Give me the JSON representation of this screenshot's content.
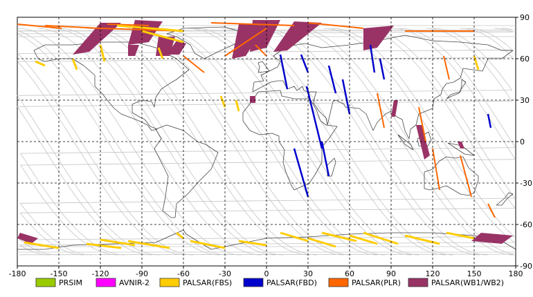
{
  "map": {
    "lon_range": [
      -180,
      180
    ],
    "lat_range": [
      -90,
      90
    ],
    "grid_style": "dashed",
    "x_ticks": [
      "-180",
      "-150",
      "-120",
      "-90",
      "-60",
      "-30",
      "0",
      "30",
      "60",
      "90",
      "120",
      "150",
      "180"
    ],
    "y_ticks": [
      "90",
      "60",
      "30",
      "0",
      "-30",
      "-60",
      "-90"
    ]
  },
  "legend": [
    {
      "label": "PRSIM",
      "color": "#99cc00"
    },
    {
      "label": "AVNIR-2",
      "color": "#ff00ff"
    },
    {
      "label": "PALSAR(FBS)",
      "color": "#ffcc00"
    },
    {
      "label": "PALSAR(FBD)",
      "color": "#0000cc"
    },
    {
      "label": "PALSAR(PLR)",
      "color": "#ff6600"
    },
    {
      "label": "PALSAR(WB1/WB2)",
      "color": "#993366"
    }
  ],
  "swaths": {
    "wb": [
      [
        [
          -120,
          86
        ],
        [
          -105,
          86
        ],
        [
          -128,
          65
        ],
        [
          -140,
          63
        ]
      ],
      [
        [
          -95,
          88
        ],
        [
          -75,
          87
        ],
        [
          -85,
          72
        ],
        [
          -100,
          70
        ]
      ],
      [
        [
          -78,
          76
        ],
        [
          -66,
          76
        ],
        [
          -70,
          62
        ],
        [
          -80,
          62
        ]
      ],
      [
        [
          -65,
          73
        ],
        [
          -58,
          71
        ],
        [
          -63,
          63
        ],
        [
          -72,
          63
        ]
      ],
      [
        [
          -20,
          85
        ],
        [
          0,
          86
        ],
        [
          -15,
          62
        ],
        [
          -25,
          60
        ]
      ],
      [
        [
          -10,
          88
        ],
        [
          10,
          88
        ],
        [
          0,
          68
        ],
        [
          -12,
          65
        ]
      ],
      [
        [
          20,
          87
        ],
        [
          40,
          86
        ],
        [
          15,
          66
        ],
        [
          5,
          65
        ]
      ],
      [
        [
          70,
          82
        ],
        [
          92,
          84
        ],
        [
          80,
          68
        ],
        [
          70,
          66
        ]
      ],
      [
        [
          -100,
          70
        ],
        [
          -92,
          70
        ],
        [
          -95,
          62
        ],
        [
          -100,
          62
        ]
      ],
      [
        [
          92,
          30
        ],
        [
          95,
          30
        ],
        [
          93,
          18
        ],
        [
          90,
          18
        ]
      ],
      [
        [
          108,
          12
        ],
        [
          112,
          12
        ],
        [
          118,
          -10
        ],
        [
          114,
          -13
        ]
      ],
      [
        [
          -12,
          33
        ],
        [
          -8,
          33
        ],
        [
          -8,
          28
        ],
        [
          -12,
          28
        ]
      ],
      [
        [
          138,
          0
        ],
        [
          141,
          0
        ],
        [
          143,
          -5
        ],
        [
          140,
          -5
        ]
      ],
      [
        [
          -178,
          -66
        ],
        [
          -165,
          -70
        ],
        [
          -170,
          -74
        ],
        [
          -180,
          -70
        ]
      ],
      [
        [
          155,
          -66
        ],
        [
          178,
          -68
        ],
        [
          170,
          -74
        ],
        [
          148,
          -72
        ]
      ]
    ],
    "fbs": [
      [
        [
          -108,
          84
        ],
        [
          -60,
          80
        ]
      ],
      [
        [
          -90,
          80
        ],
        [
          -60,
          72
        ]
      ],
      [
        [
          -120,
          70
        ],
        [
          -117,
          58
        ]
      ],
      [
        [
          -78,
          68
        ],
        [
          -75,
          60
        ]
      ],
      [
        [
          -22,
          30
        ],
        [
          -20,
          22
        ]
      ],
      [
        [
          -167,
          58
        ],
        [
          -160,
          55
        ]
      ],
      [
        [
          -140,
          60
        ],
        [
          -137,
          52
        ]
      ],
      [
        [
          150,
          62
        ],
        [
          153,
          52
        ]
      ],
      [
        [
          -175,
          -73
        ],
        [
          -150,
          -77
        ]
      ],
      [
        [
          -130,
          -74
        ],
        [
          -105,
          -77
        ]
      ],
      [
        [
          -100,
          -72
        ],
        [
          -70,
          -77
        ]
      ],
      [
        [
          -65,
          -66
        ],
        [
          -60,
          -70
        ]
      ],
      [
        [
          -55,
          -72
        ],
        [
          -30,
          -77
        ]
      ],
      [
        [
          -20,
          -72
        ],
        [
          0,
          -75
        ]
      ],
      [
        [
          10,
          -66
        ],
        [
          30,
          -72
        ]
      ],
      [
        [
          30,
          -70
        ],
        [
          50,
          -76
        ]
      ],
      [
        [
          40,
          -66
        ],
        [
          65,
          -72
        ]
      ],
      [
        [
          70,
          -66
        ],
        [
          95,
          -74
        ]
      ],
      [
        [
          100,
          -68
        ],
        [
          125,
          -74
        ]
      ],
      [
        [
          130,
          -66
        ],
        [
          150,
          -70
        ]
      ],
      [
        [
          -120,
          -71
        ],
        [
          -95,
          -75
        ]
      ],
      [
        [
          60,
          -68
        ],
        [
          80,
          -74
        ]
      ],
      [
        [
          -33,
          33
        ],
        [
          -30,
          25
        ]
      ]
    ],
    "fbd": [
      [
        [
          10,
          63
        ],
        [
          15,
          38
        ]
      ],
      [
        [
          25,
          63
        ],
        [
          30,
          50
        ]
      ],
      [
        [
          45,
          55
        ],
        [
          50,
          35
        ]
      ],
      [
        [
          55,
          45
        ],
        [
          60,
          20
        ]
      ],
      [
        [
          75,
          70
        ],
        [
          78,
          50
        ]
      ],
      [
        [
          82,
          60
        ],
        [
          85,
          45
        ]
      ],
      [
        [
          29,
          40
        ],
        [
          40,
          -5
        ]
      ],
      [
        [
          20,
          -5
        ],
        [
          30,
          -40
        ]
      ],
      [
        [
          40,
          0
        ],
        [
          45,
          -25
        ]
      ],
      [
        [
          160,
          20
        ],
        [
          162,
          10
        ]
      ]
    ],
    "plr": [
      [
        [
          -180,
          85
        ],
        [
          -148,
          82
        ]
      ],
      [
        [
          -160,
          84
        ],
        [
          -120,
          82
        ]
      ],
      [
        [
          -115,
          85
        ],
        [
          -85,
          84
        ]
      ],
      [
        [
          -40,
          86
        ],
        [
          20,
          84
        ]
      ],
      [
        [
          30,
          86
        ],
        [
          70,
          82
        ]
      ],
      [
        [
          100,
          80
        ],
        [
          150,
          80
        ]
      ],
      [
        [
          -60,
          62
        ],
        [
          -45,
          50
        ]
      ],
      [
        [
          -8,
          70
        ],
        [
          0,
          62
        ]
      ],
      [
        [
          0,
          82
        ],
        [
          -30,
          62
        ]
      ],
      [
        [
          128,
          62
        ],
        [
          132,
          45
        ]
      ],
      [
        [
          80,
          35
        ],
        [
          85,
          10
        ]
      ],
      [
        [
          110,
          25
        ],
        [
          115,
          0
        ]
      ],
      [
        [
          120,
          -5
        ],
        [
          125,
          -35
        ]
      ],
      [
        [
          140,
          -10
        ],
        [
          148,
          -40
        ]
      ],
      [
        [
          160,
          -45
        ],
        [
          165,
          -55
        ]
      ],
      [
        [
          -120,
          82
        ],
        [
          -60,
          80
        ]
      ]
    ]
  }
}
